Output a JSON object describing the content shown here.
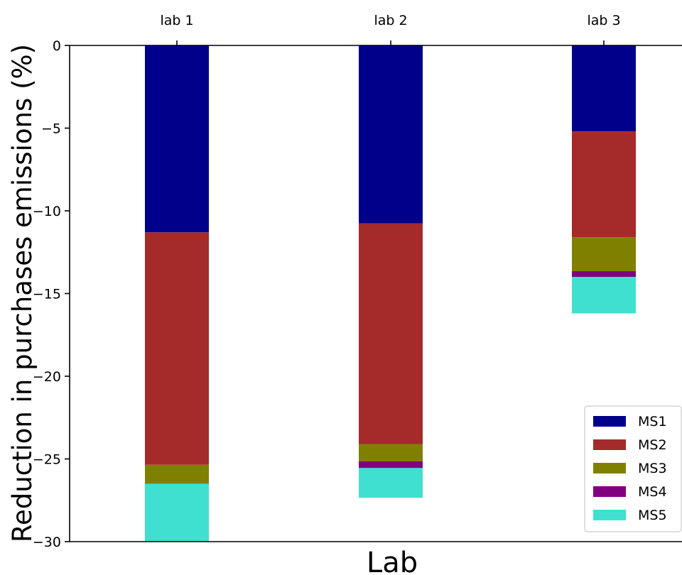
{
  "chart_data": {
    "type": "bar",
    "stacked": true,
    "categories": [
      "lab 1",
      "lab 2",
      "lab 3"
    ],
    "xlabel": "Lab",
    "ylabel": "Reduction in purchases emissions (%)",
    "x_axis_position": "top",
    "ylim": [
      -30,
      0
    ],
    "yticks": [
      0,
      -5,
      -10,
      -15,
      -20,
      -25,
      -30
    ],
    "ytick_labels": [
      "0",
      "−5",
      "−10",
      "−15",
      "−20",
      "−25",
      "−30"
    ],
    "legend_position": "bottom-right",
    "grid": false,
    "series": [
      {
        "name": "MS1",
        "color": "#00008b",
        "values": [
          -11.3,
          -10.75,
          -5.2
        ]
      },
      {
        "name": "MS2",
        "color": "#a52a2a",
        "values": [
          -14.05,
          -13.35,
          -6.4
        ]
      },
      {
        "name": "MS3",
        "color": "#808000",
        "values": [
          -1.15,
          -1.05,
          -2.05
        ]
      },
      {
        "name": "MS4",
        "color": "#800080",
        "values": [
          0.0,
          -0.4,
          -0.35
        ]
      },
      {
        "name": "MS5",
        "color": "#40e0d0",
        "values": [
          -3.5,
          -1.8,
          -2.2
        ]
      }
    ]
  }
}
